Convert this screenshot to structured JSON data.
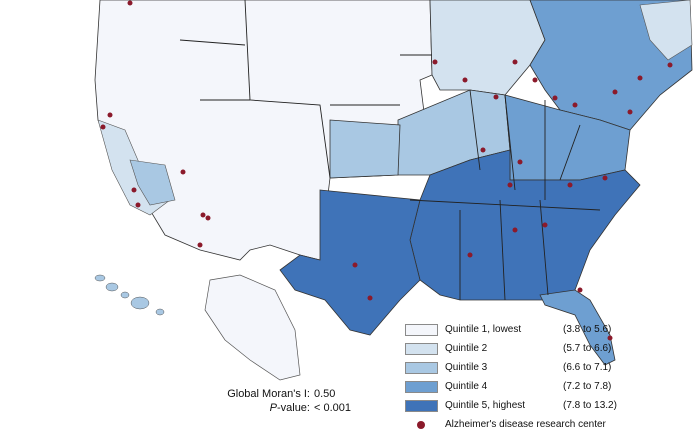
{
  "map": {
    "colors": {
      "q1": "#f4f6fb",
      "q2": "#d3e2ef",
      "q3": "#a9c8e3",
      "q4": "#6e9fd1",
      "q5": "#3f73b8",
      "border": "#333333",
      "research_center": "#8b1a2b"
    }
  },
  "legend": {
    "items": [
      {
        "label": "Quintile 1, lowest",
        "range": "(3.8 to 5.6)",
        "color": "#f4f6fb"
      },
      {
        "label": "Quintile 2",
        "range": "(5.7 to 6.6)",
        "color": "#d3e2ef"
      },
      {
        "label": "Quintile 3",
        "range": "(6.6 to 7.1)",
        "color": "#a9c8e3"
      },
      {
        "label": "Quintile 4",
        "range": "(7.2 to 7.8)",
        "color": "#6e9fd1"
      },
      {
        "label": "Quintile 5, highest",
        "range": "(7.8 to 13.2)",
        "color": "#3f73b8"
      }
    ],
    "marker_label": "Alzheimer's disease research center"
  },
  "stats": {
    "morans_label": "Global Moran's I:",
    "morans_value": "0.50",
    "p_label_italic": "P",
    "p_label_rest": "-value:",
    "p_value": "< 0.001"
  }
}
